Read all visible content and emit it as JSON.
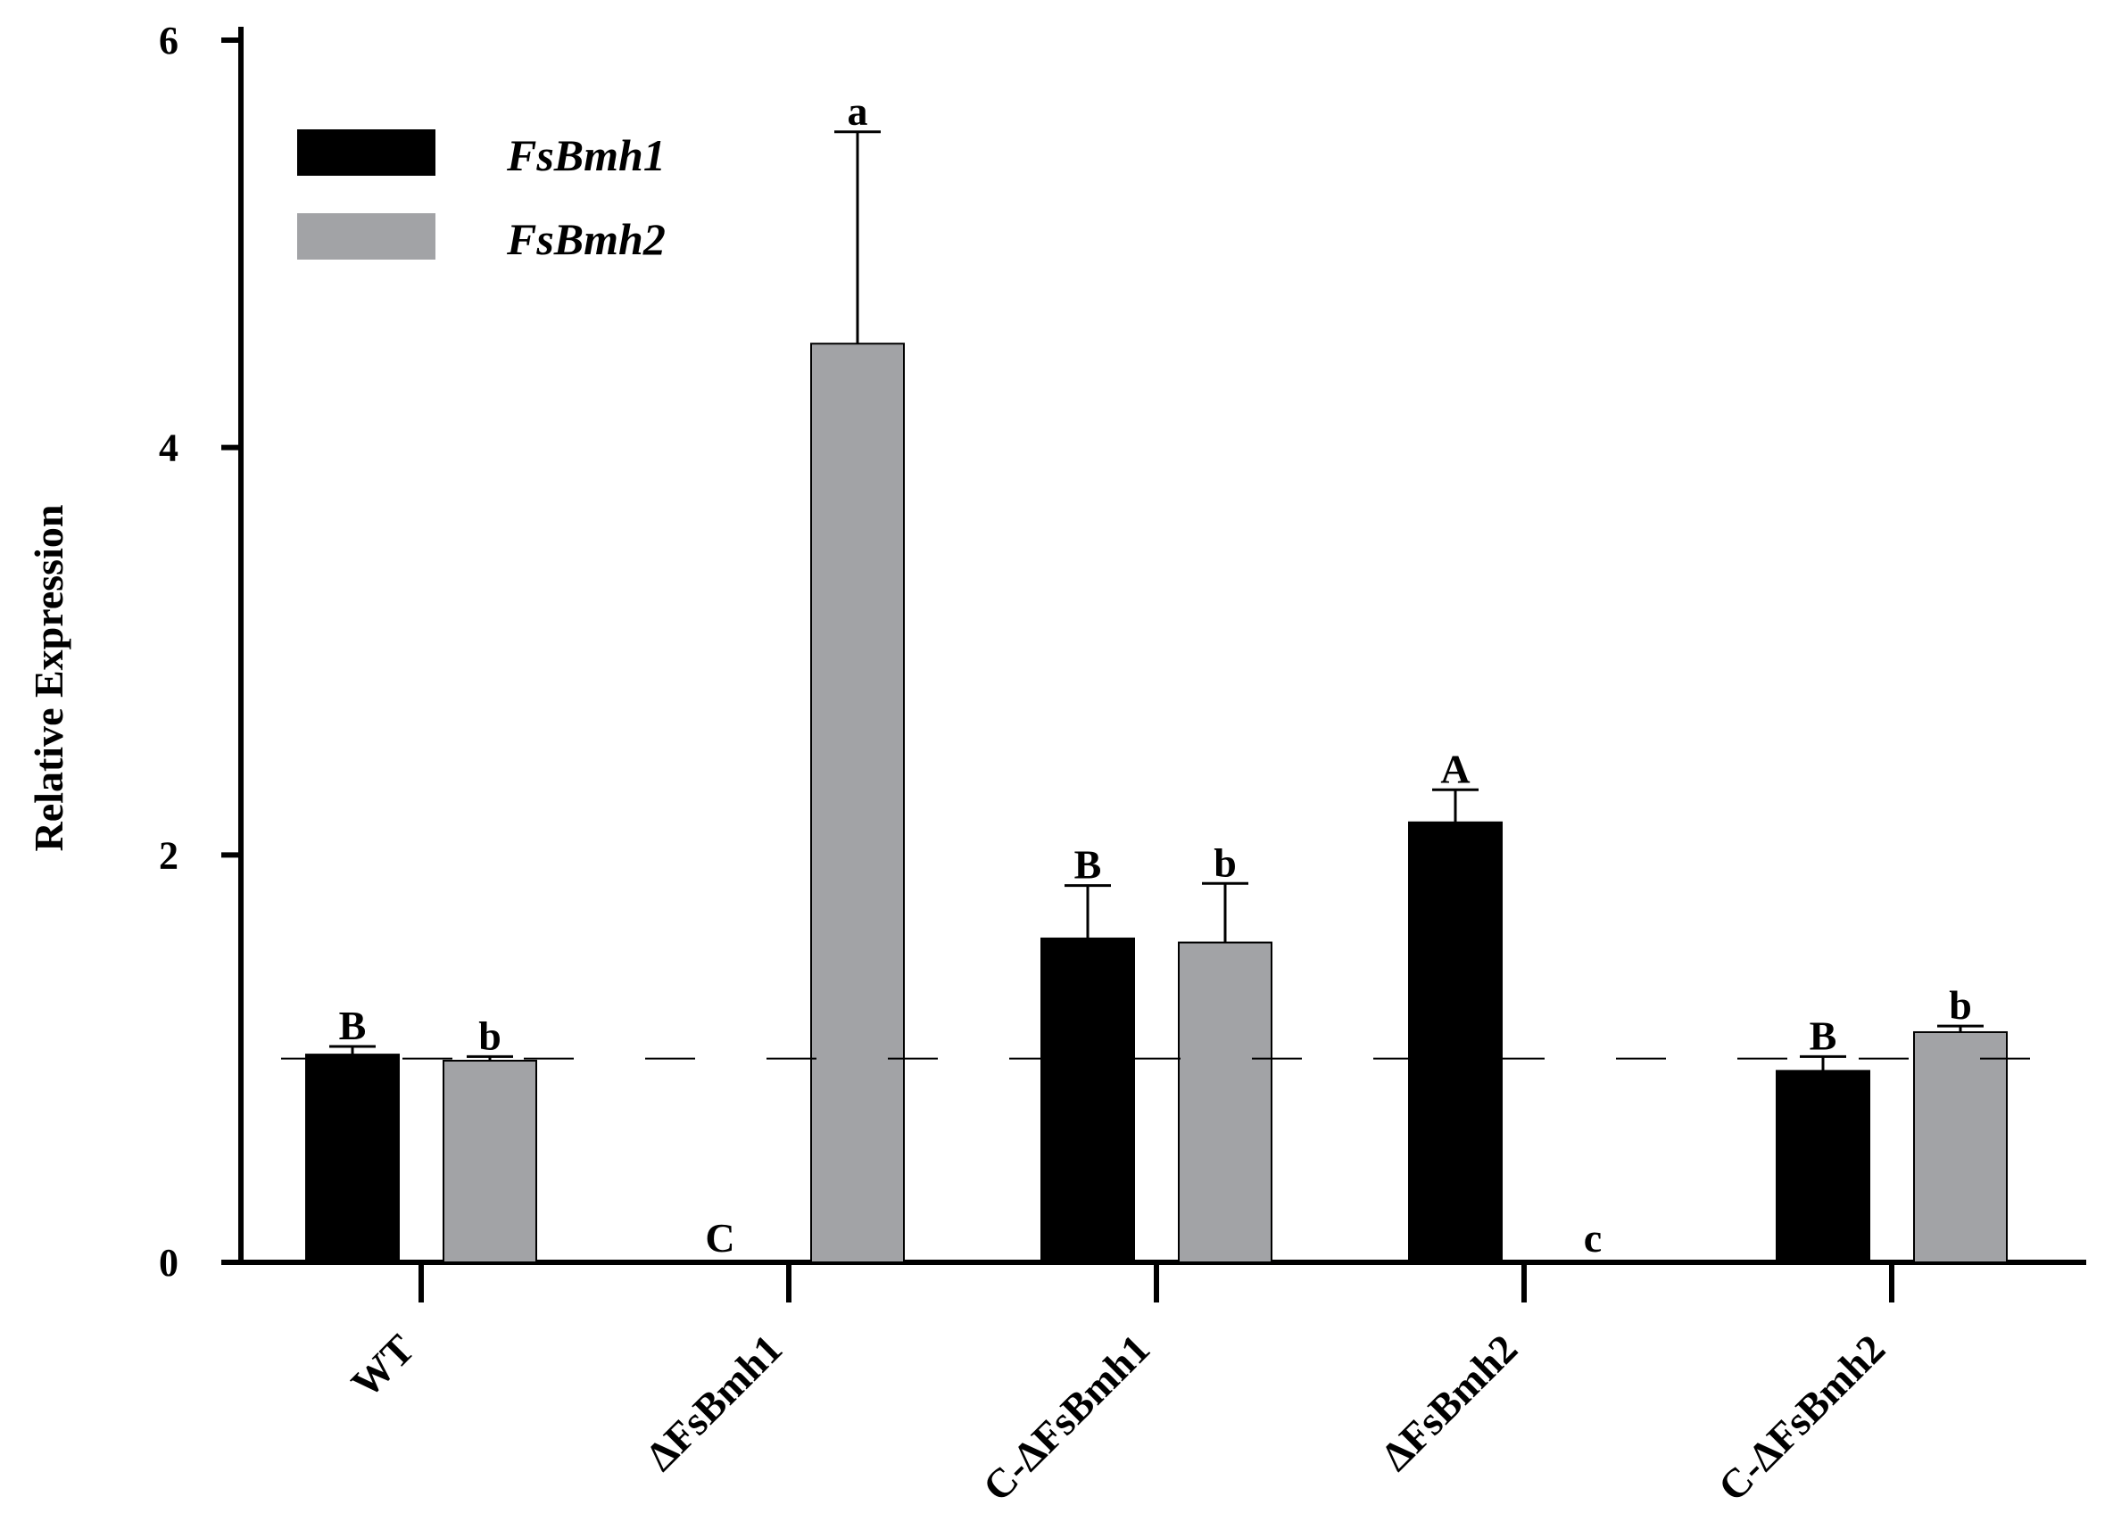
{
  "chart_data": {
    "type": "bar",
    "categories": [
      "WT",
      "ΔFsBmh1",
      "C-ΔFsBmh1",
      "ΔFsBmh2",
      "C-ΔFsBmh2"
    ],
    "ylabel": "Relative  Expression",
    "xlabel": "",
    "ylim": [
      0,
      6
    ],
    "yticks": [
      0,
      2,
      4,
      6
    ],
    "grid": false,
    "legend_position": "top-left",
    "reference_line": 1,
    "series": [
      {
        "name": "FsBmh1",
        "color": "#000000",
        "values": [
          1.02,
          0,
          1.59,
          2.16,
          0.94
        ],
        "errors": [
          0.04,
          0,
          0.26,
          0.16,
          0.07
        ],
        "sig_labels": [
          "B",
          "C",
          "B",
          "A",
          "B"
        ]
      },
      {
        "name": "FsBmh2",
        "color": "#a2a3a6",
        "values": [
          0.99,
          4.51,
          1.57,
          0,
          1.13
        ],
        "errors": [
          0.02,
          1.04,
          0.29,
          0,
          0.03
        ],
        "sig_labels": [
          "b",
          "a",
          "b",
          "c",
          "b"
        ]
      }
    ]
  }
}
